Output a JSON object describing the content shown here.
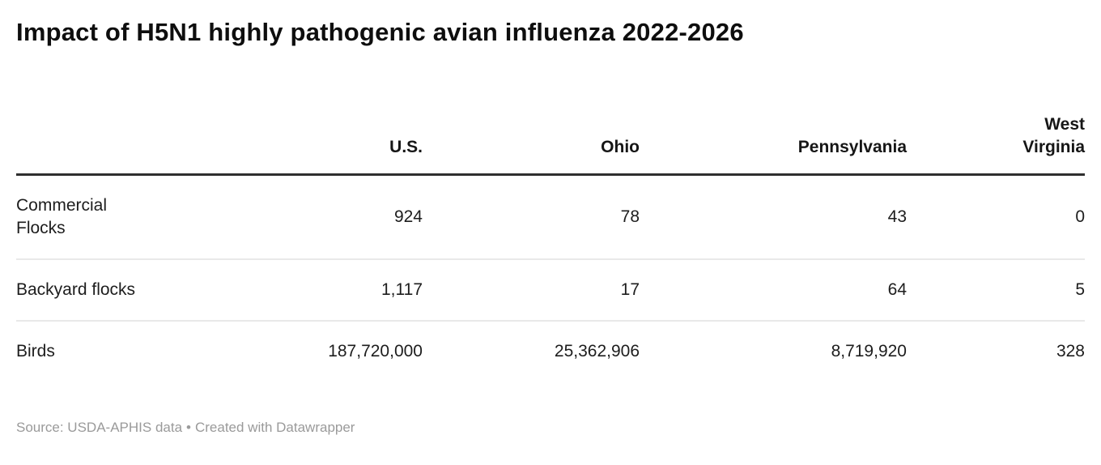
{
  "header": {
    "title": "Impact of H5N1 highly pathogenic avian influenza 2022-2026"
  },
  "table": {
    "columns": [
      "",
      "U.S.",
      "Ohio",
      "Pennsylvania",
      "West Virginia"
    ],
    "rows": [
      {
        "label": "Commercial Flocks",
        "values": [
          "924",
          "78",
          "43",
          "0"
        ]
      },
      {
        "label": "Backyard flocks",
        "values": [
          "1,117",
          "17",
          "64",
          "5"
        ]
      },
      {
        "label": "Birds",
        "values": [
          "187,720,000",
          "25,362,906",
          "8,719,920",
          "328"
        ]
      }
    ]
  },
  "footer": {
    "source_text": "Source: USDA-APHIS data",
    "separator": "•",
    "attribution": "Created with Datawrapper"
  },
  "colors": {
    "title_text": "#0e0e0e",
    "body_text": "#1d1d1d",
    "header_rule": "#2f2f2f",
    "row_divider": "#e9e9e9",
    "footer_text": "#9a9a9a",
    "background": "#ffffff"
  },
  "chart_data": {
    "type": "table",
    "title": "Impact of H5N1 highly pathogenic avian influenza 2022-2026",
    "columns": [
      "U.S.",
      "Ohio",
      "Pennsylvania",
      "West Virginia"
    ],
    "rows": [
      {
        "label": "Commercial Flocks",
        "values": [
          924,
          78,
          43,
          0
        ]
      },
      {
        "label": "Backyard flocks",
        "values": [
          1117,
          17,
          64,
          5
        ]
      },
      {
        "label": "Birds",
        "values": [
          187720000,
          25362906,
          8719920,
          328
        ]
      }
    ],
    "source": "USDA-APHIS data",
    "attribution": "Created with Datawrapper",
    "layout_hints": {
      "value_alignment": "right",
      "label_alignment": "left",
      "header_rule": "thick",
      "row_dividers": "light",
      "grid": "horizontal-only"
    }
  }
}
